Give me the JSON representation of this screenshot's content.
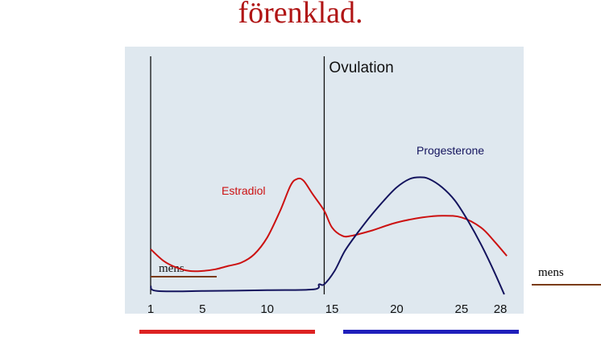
{
  "title": "förenklad.",
  "mens_right_label": "mens",
  "colors": {
    "estradiol": "#cc1111",
    "progesterone": "#14145e",
    "panel_bg": "#dfe8ef",
    "mens_line": "#7a3b12",
    "bar_left": "#dd2222",
    "bar_right": "#1f1fbb"
  },
  "chart_data": {
    "type": "line",
    "x_ticks": [
      1,
      5,
      10,
      15,
      20,
      25,
      28
    ],
    "xlim": [
      1,
      29.8
    ],
    "ylim": [
      0,
      100
    ],
    "y_axis_shown": false,
    "y_ticks_shown": false,
    "grid": false,
    "annotations": {
      "ovulation": {
        "label": "Ovulation",
        "day": 14.4
      },
      "mens": {
        "label": "mens",
        "from_day": 1,
        "to_day": 6.1
      }
    },
    "series": [
      {
        "name": "Estradiol",
        "points": [
          [
            1,
            27
          ],
          [
            2,
            20
          ],
          [
            3,
            16
          ],
          [
            4,
            14
          ],
          [
            5,
            14
          ],
          [
            6,
            15
          ],
          [
            7,
            17
          ],
          [
            8,
            19
          ],
          [
            9,
            24
          ],
          [
            10,
            34
          ],
          [
            11,
            50
          ],
          [
            11.8,
            65
          ],
          [
            12.3,
            69
          ],
          [
            12.8,
            68
          ],
          [
            13.5,
            60
          ],
          [
            14.4,
            50
          ],
          [
            15,
            40
          ],
          [
            15.8,
            35
          ],
          [
            16.5,
            35
          ],
          [
            18,
            38
          ],
          [
            20,
            43
          ],
          [
            22,
            46
          ],
          [
            23.5,
            47
          ],
          [
            25,
            46
          ],
          [
            26.5,
            40
          ],
          [
            27.5,
            32
          ],
          [
            28.5,
            23
          ]
        ]
      },
      {
        "name": "Progesterone",
        "points": [
          [
            1,
            5
          ],
          [
            1.5,
            2
          ],
          [
            5,
            2
          ],
          [
            10,
            2.5
          ],
          [
            13.6,
            3
          ],
          [
            14,
            6
          ],
          [
            14.4,
            6
          ],
          [
            15.2,
            14
          ],
          [
            16,
            26
          ],
          [
            17,
            37
          ],
          [
            18,
            47
          ],
          [
            19,
            56
          ],
          [
            20,
            64
          ],
          [
            21,
            69
          ],
          [
            21.8,
            70
          ],
          [
            22.5,
            69
          ],
          [
            23.5,
            64
          ],
          [
            24.5,
            56
          ],
          [
            25.5,
            44
          ],
          [
            26.5,
            30
          ],
          [
            27.5,
            14
          ],
          [
            28.3,
            0
          ]
        ]
      }
    ]
  }
}
